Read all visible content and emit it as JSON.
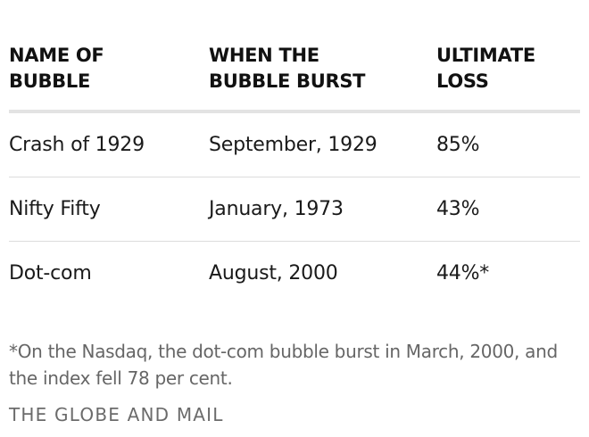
{
  "chart_data": {
    "type": "table",
    "columns": [
      "NAME OF\nBUBBLE",
      "WHEN THE\nBUBBLE BURST",
      "ULTIMATE\nLOSS"
    ],
    "rows": [
      [
        "Crash of 1929",
        "September, 1929",
        "85%"
      ],
      [
        "Nifty Fifty",
        "January, 1973",
        "43%"
      ],
      [
        "Dot-com",
        "August, 2000",
        "44%*"
      ]
    ],
    "footnote": "*On the Nasdaq, the dot-com bubble burst in March, 2000, and the index fell 78 per cent.",
    "source": "THE GLOBE AND MAIL"
  },
  "colors": {
    "text": "#1a1a1a",
    "muted_text": "#666666",
    "header_rule": "#e3e3e3",
    "row_rule": "#dcdcdc"
  }
}
